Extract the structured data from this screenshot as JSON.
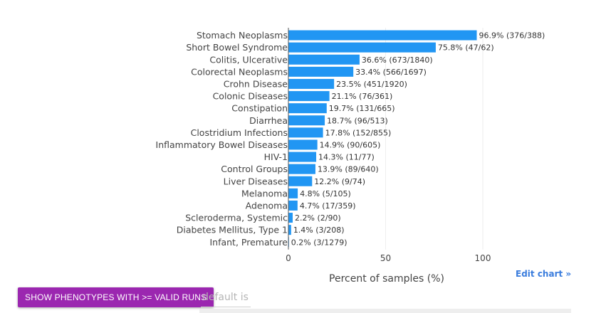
{
  "chart_data": {
    "type": "bar",
    "orientation": "horizontal",
    "categories": [
      "Stomach Neoplasms",
      "Short Bowel Syndrome",
      "Colitis, Ulcerative",
      "Colorectal Neoplasms",
      "Crohn Disease",
      "Colonic Diseases",
      "Constipation",
      "Diarrhea",
      "Clostridium Infections",
      "Inflammatory Bowel Diseases",
      "HIV-1",
      "Control Groups",
      "Liver Diseases",
      "Melanoma",
      "Adenoma",
      "Scleroderma, Systemic",
      "Diabetes Mellitus, Type 1",
      "Infant, Premature"
    ],
    "values": [
      96.9,
      75.8,
      36.6,
      33.4,
      23.5,
      21.1,
      19.7,
      18.7,
      17.8,
      14.9,
      14.3,
      13.9,
      12.2,
      4.8,
      4.7,
      2.2,
      1.4,
      0.2
    ],
    "data_labels": [
      "96.9% (376/388)",
      "75.8% (47/62)",
      "36.6% (673/1840)",
      "33.4% (566/1697)",
      "23.5% (451/1920)",
      "21.1% (76/361)",
      "19.7% (131/665)",
      "18.7% (96/513)",
      "17.8% (152/855)",
      "14.9% (90/605)",
      "14.3% (11/77)",
      "13.9% (89/640)",
      "12.2% (9/74)",
      "4.8% (5/105)",
      "4.7% (17/359)",
      "2.2% (2/90)",
      "1.4% (3/208)",
      "0.2% (3/1279)"
    ],
    "xlabel": "Percent of samples (%)",
    "xlim": [
      0,
      100
    ],
    "xticks": [
      0,
      50,
      100
    ],
    "grid": true,
    "bar_color": "#2196f3"
  },
  "edit_chart_label": "Edit chart »",
  "controls": {
    "show_phenotypes_label": "SHOW PHENOTYPES WITH >= VALID RUNS",
    "valid_runs_placeholder": "default is"
  }
}
